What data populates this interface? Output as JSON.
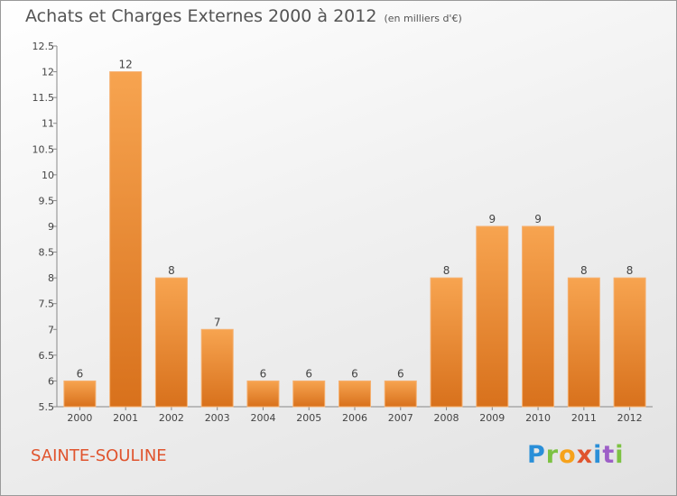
{
  "title": "Achats et Charges Externes 2000 à 2012",
  "subtitle": "(en milliers d'€)",
  "commune": "SAINTE-SOULINE",
  "logo": "Proxiti",
  "colors": {
    "bar": "#f08a2c",
    "bar_light": "#f7a555",
    "bar_dark": "#d97018",
    "title": "#545454",
    "commune": "#e0542e"
  },
  "chart_data": {
    "type": "bar",
    "categories": [
      "2000",
      "2001",
      "2002",
      "2003",
      "2004",
      "2005",
      "2006",
      "2007",
      "2008",
      "2009",
      "2010",
      "2011",
      "2012"
    ],
    "values": [
      6,
      12,
      8,
      7,
      6,
      6,
      6,
      6,
      8,
      9,
      9,
      8,
      8
    ],
    "data_labels": [
      "6",
      "12",
      "8",
      "7",
      "6",
      "6",
      "6",
      "6",
      "8",
      "9",
      "9",
      "8",
      "8"
    ],
    "ylim": [
      5.5,
      12.5
    ],
    "yticks": [
      "5.5",
      "6",
      "6.5",
      "7",
      "7.5",
      "8",
      "8.5",
      "9",
      "9.5",
      "10",
      "10.5",
      "11",
      "11.5",
      "12",
      "12.5"
    ],
    "grid": false,
    "xlabel": "",
    "ylabel": ""
  }
}
